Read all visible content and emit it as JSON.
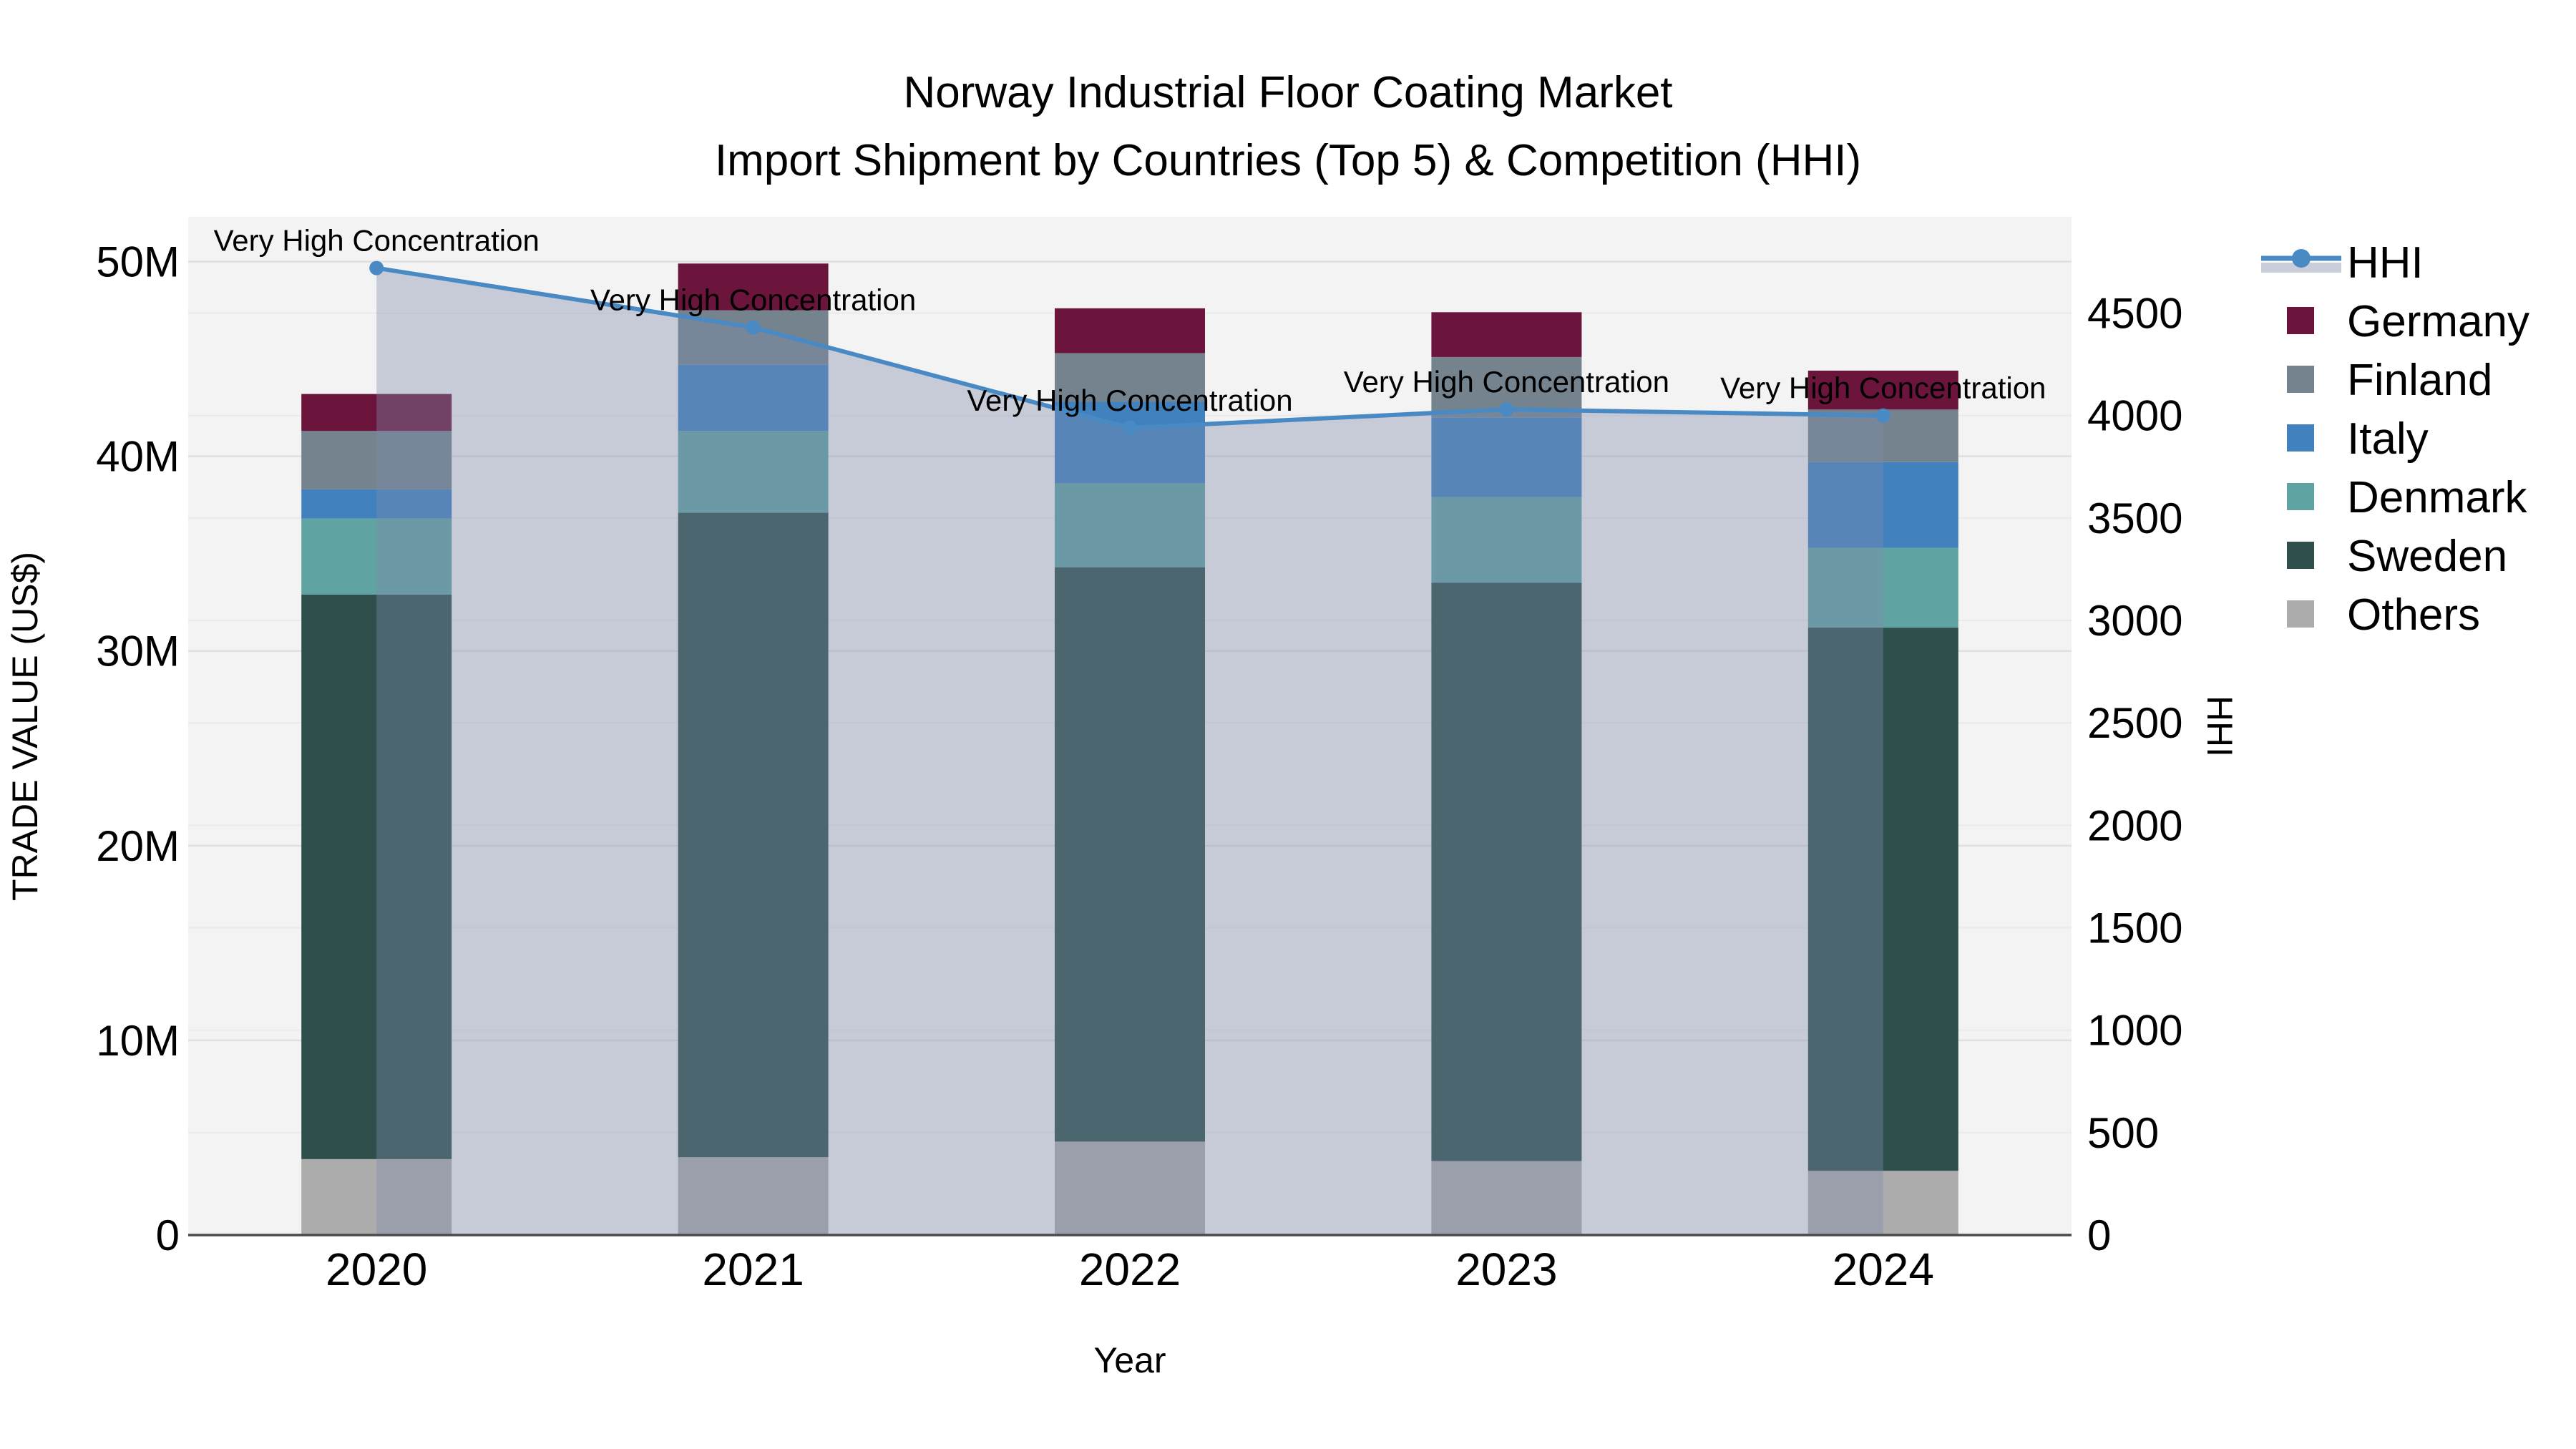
{
  "title": {
    "line1": "Norway Industrial Floor Coating Market",
    "line2": "Import Shipment by Countries (Top 5) & Competition (HHI)"
  },
  "axes": {
    "x": {
      "label": "Year",
      "tick_labels": [
        "2020",
        "2021",
        "2022",
        "2023",
        "2024"
      ]
    },
    "y_left": {
      "label": "TRADE VALUE (US$)",
      "ticks": [
        {
          "label": "0",
          "value": 0
        },
        {
          "label": "10M",
          "value": 10
        },
        {
          "label": "20M",
          "value": 20
        },
        {
          "label": "30M",
          "value": 30
        },
        {
          "label": "40M",
          "value": 40
        },
        {
          "label": "50M",
          "value": 50
        }
      ]
    },
    "y_right": {
      "label": "HHI",
      "ticks": [
        {
          "label": "0",
          "value": 0
        },
        {
          "label": "500",
          "value": 500
        },
        {
          "label": "1000",
          "value": 1000
        },
        {
          "label": "1500",
          "value": 1500
        },
        {
          "label": "2000",
          "value": 2000
        },
        {
          "label": "2500",
          "value": 2500
        },
        {
          "label": "3000",
          "value": 3000
        },
        {
          "label": "3500",
          "value": 3500
        },
        {
          "label": "4000",
          "value": 4000
        },
        {
          "label": "4500",
          "value": 4500
        }
      ]
    }
  },
  "legend": {
    "items": [
      {
        "label": "HHI",
        "marker": "line-dot",
        "color": "#4A8AC4",
        "band_color": "#C9CEDA"
      },
      {
        "label": "Germany",
        "marker": "square",
        "color": "#6B143C"
      },
      {
        "label": "Finland",
        "marker": "square",
        "color": "#75838F"
      },
      {
        "label": "Italy",
        "marker": "square",
        "color": "#4181BE"
      },
      {
        "label": "Denmark",
        "marker": "square",
        "color": "#60A3A3"
      },
      {
        "label": "Sweden",
        "marker": "square",
        "color": "#2E4F4B"
      },
      {
        "label": "Others",
        "marker": "square",
        "color": "#ACACAC"
      }
    ]
  },
  "annotations": {
    "label": "Very High Concentration"
  },
  "colors": {
    "plot_bg": "#F3F3F3",
    "grid_major": "#E0E0E0",
    "grid_minor": "#EAEAEA",
    "axis_line": "#4A4A4A",
    "hhi_line": "#4A8AC4",
    "hhi_fill": "rgba(127,140,170,0.38)",
    "text": "#000000"
  },
  "chart_data": {
    "type": "combo: stacked-bar + line-area",
    "title": "Norway Industrial Floor Coating Market — Import Shipment by Countries (Top 5) & Competition (HHI)",
    "categories": [
      "2020",
      "2021",
      "2022",
      "2023",
      "2024"
    ],
    "xlabel": "Year",
    "ylabel_left": "TRADE VALUE (US$)",
    "ylabel_right": "HHI",
    "bar_value_unit": "million US$",
    "bar_stack_order_bottom_to_top": [
      "Others",
      "Sweden",
      "Denmark",
      "Italy",
      "Finland",
      "Germany"
    ],
    "series": [
      {
        "name": "Others",
        "color": "#ACACAC",
        "values": [
          3.9,
          4.0,
          4.8,
          3.8,
          3.3
        ]
      },
      {
        "name": "Sweden",
        "color": "#2E4F4B",
        "values": [
          29.0,
          33.1,
          29.5,
          29.7,
          27.9
        ]
      },
      {
        "name": "Denmark",
        "color": "#60A3A3",
        "values": [
          3.9,
          4.2,
          4.3,
          4.4,
          4.1
        ]
      },
      {
        "name": "Italy",
        "color": "#4181BE",
        "values": [
          1.5,
          3.4,
          4.2,
          4.1,
          4.4
        ]
      },
      {
        "name": "Finland",
        "color": "#75838F",
        "values": [
          3.0,
          2.8,
          2.5,
          3.1,
          2.7
        ]
      },
      {
        "name": "Germany",
        "color": "#6B143C",
        "values": [
          1.9,
          2.4,
          2.3,
          2.3,
          2.0
        ]
      }
    ],
    "bar_totals": [
      43.2,
      49.9,
      47.6,
      47.4,
      44.4
    ],
    "line": {
      "name": "HHI",
      "axis": "right",
      "values": [
        4720,
        4430,
        3940,
        4030,
        4000
      ]
    },
    "ylim_left": [
      0,
      52.3
    ],
    "ylim_right": [
      0,
      4970
    ],
    "grid": true,
    "legend_position": "outside-top-right"
  }
}
